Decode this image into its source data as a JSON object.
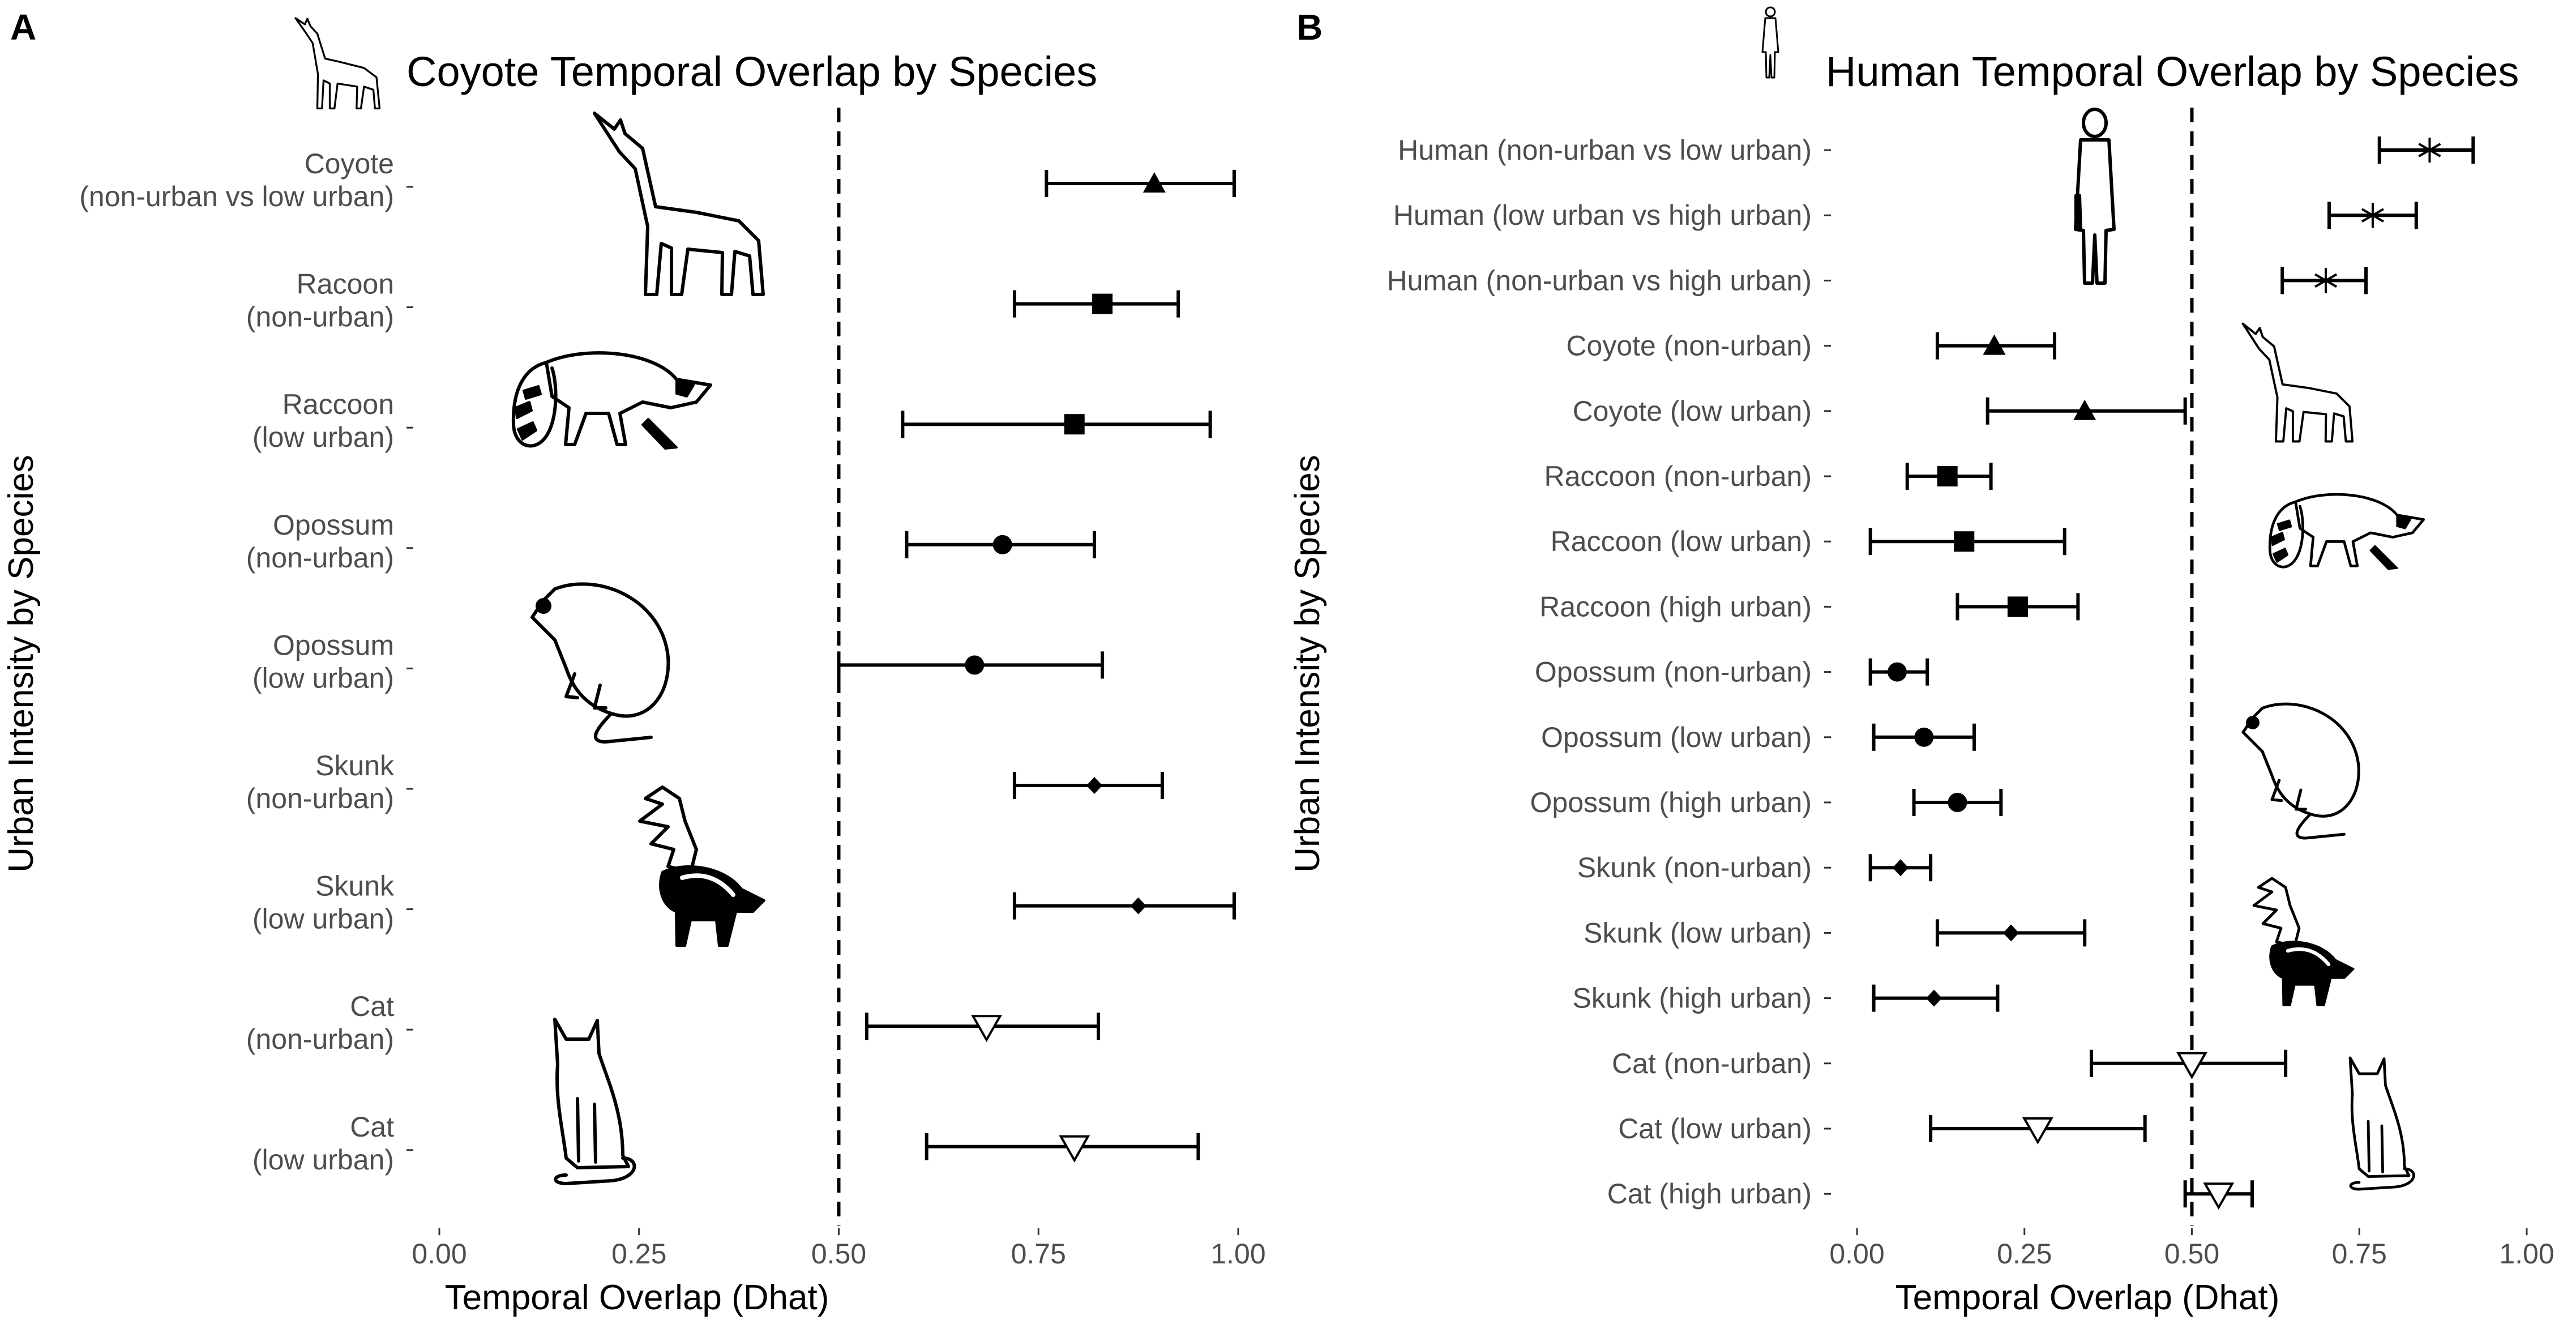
{
  "chart_data": [
    {
      "panel": "A",
      "type": "scatter",
      "title": "Coyote Temporal Overlap by Species",
      "xlabel": "Temporal Overlap (Dhat)",
      "ylabel": "Urban Intensity by Species",
      "xlim": [
        0,
        1
      ],
      "xticks": [
        "0.00",
        "0.25",
        "0.50",
        "0.75",
        "1.00"
      ],
      "reference_line": 0.5,
      "points": [
        {
          "label": [
            "Coyote",
            "(non-urban vs low urban)"
          ],
          "value": 0.895,
          "lower": 0.76,
          "upper": 0.995,
          "marker": "triangle"
        },
        {
          "label": [
            "Racoon",
            "(non-urban)"
          ],
          "value": 0.83,
          "lower": 0.72,
          "upper": 0.925,
          "marker": "square"
        },
        {
          "label": [
            "Raccoon",
            "(low urban)"
          ],
          "value": 0.795,
          "lower": 0.58,
          "upper": 0.965,
          "marker": "square"
        },
        {
          "label": [
            "Opossum",
            "(non-urban)"
          ],
          "value": 0.705,
          "lower": 0.585,
          "upper": 0.82,
          "marker": "circle"
        },
        {
          "label": [
            "Opossum",
            "(low urban)"
          ],
          "value": 0.67,
          "lower": 0.5,
          "upper": 0.83,
          "marker": "circle"
        },
        {
          "label": [
            "Skunk",
            "(non-urban)"
          ],
          "value": 0.82,
          "lower": 0.72,
          "upper": 0.905,
          "marker": "diamond"
        },
        {
          "label": [
            "Skunk",
            "(low urban)"
          ],
          "value": 0.875,
          "lower": 0.72,
          "upper": 0.995,
          "marker": "diamond"
        },
        {
          "label": [
            "Cat",
            "(non-urban)"
          ],
          "value": 0.685,
          "lower": 0.535,
          "upper": 0.825,
          "marker": "open-triangle-down"
        },
        {
          "label": [
            "Cat",
            "(low urban)"
          ],
          "value": 0.795,
          "lower": 0.61,
          "upper": 0.95,
          "marker": "open-triangle-down"
        }
      ]
    },
    {
      "panel": "B",
      "type": "scatter",
      "title": "Human Temporal Overlap by Species",
      "xlabel": "Temporal Overlap (Dhat)",
      "ylabel": "Urban Intensity by Species",
      "xlim": [
        0,
        1
      ],
      "xticks": [
        "0.00",
        "0.25",
        "0.50",
        "0.75",
        "1.00"
      ],
      "reference_line": 0.5,
      "points": [
        {
          "label": [
            "Human (non-urban vs low urban)"
          ],
          "value": 0.855,
          "lower": 0.78,
          "upper": 0.92,
          "marker": "asterisk"
        },
        {
          "label": [
            "Human (low urban vs high urban)"
          ],
          "value": 0.77,
          "lower": 0.705,
          "upper": 0.835,
          "marker": "asterisk"
        },
        {
          "label": [
            "Human (non-urban vs high urban)"
          ],
          "value": 0.7,
          "lower": 0.635,
          "upper": 0.76,
          "marker": "asterisk"
        },
        {
          "label": [
            "Coyote (non-urban)"
          ],
          "value": 0.205,
          "lower": 0.12,
          "upper": 0.295,
          "marker": "triangle"
        },
        {
          "label": [
            "Coyote (low urban)"
          ],
          "value": 0.34,
          "lower": 0.195,
          "upper": 0.49,
          "marker": "triangle"
        },
        {
          "label": [
            "Raccoon (non-urban)"
          ],
          "value": 0.135,
          "lower": 0.075,
          "upper": 0.2,
          "marker": "square"
        },
        {
          "label": [
            "Raccoon (low urban)"
          ],
          "value": 0.16,
          "lower": 0.02,
          "upper": 0.31,
          "marker": "square"
        },
        {
          "label": [
            "Raccoon (high urban)"
          ],
          "value": 0.24,
          "lower": 0.15,
          "upper": 0.33,
          "marker": "square"
        },
        {
          "label": [
            "Opossum (non-urban)"
          ],
          "value": 0.06,
          "lower": 0.02,
          "upper": 0.105,
          "marker": "circle"
        },
        {
          "label": [
            "Opossum (low urban)"
          ],
          "value": 0.1,
          "lower": 0.025,
          "upper": 0.175,
          "marker": "circle"
        },
        {
          "label": [
            "Opossum (high urban)"
          ],
          "value": 0.15,
          "lower": 0.085,
          "upper": 0.215,
          "marker": "circle"
        },
        {
          "label": [
            "Skunk (non-urban)"
          ],
          "value": 0.065,
          "lower": 0.02,
          "upper": 0.11,
          "marker": "diamond"
        },
        {
          "label": [
            "Skunk (low urban)"
          ],
          "value": 0.23,
          "lower": 0.12,
          "upper": 0.34,
          "marker": "diamond"
        },
        {
          "label": [
            "Skunk (high urban)"
          ],
          "value": 0.115,
          "lower": 0.025,
          "upper": 0.21,
          "marker": "diamond"
        },
        {
          "label": [
            "Cat (non-urban)"
          ],
          "value": 0.5,
          "lower": 0.35,
          "upper": 0.64,
          "marker": "open-triangle-down"
        },
        {
          "label": [
            "Cat (low urban)"
          ],
          "value": 0.27,
          "lower": 0.11,
          "upper": 0.43,
          "marker": "open-triangle-down"
        },
        {
          "label": [
            "Cat (high urban)"
          ],
          "value": 0.54,
          "lower": 0.49,
          "upper": 0.59,
          "marker": "open-triangle-down"
        }
      ]
    }
  ]
}
